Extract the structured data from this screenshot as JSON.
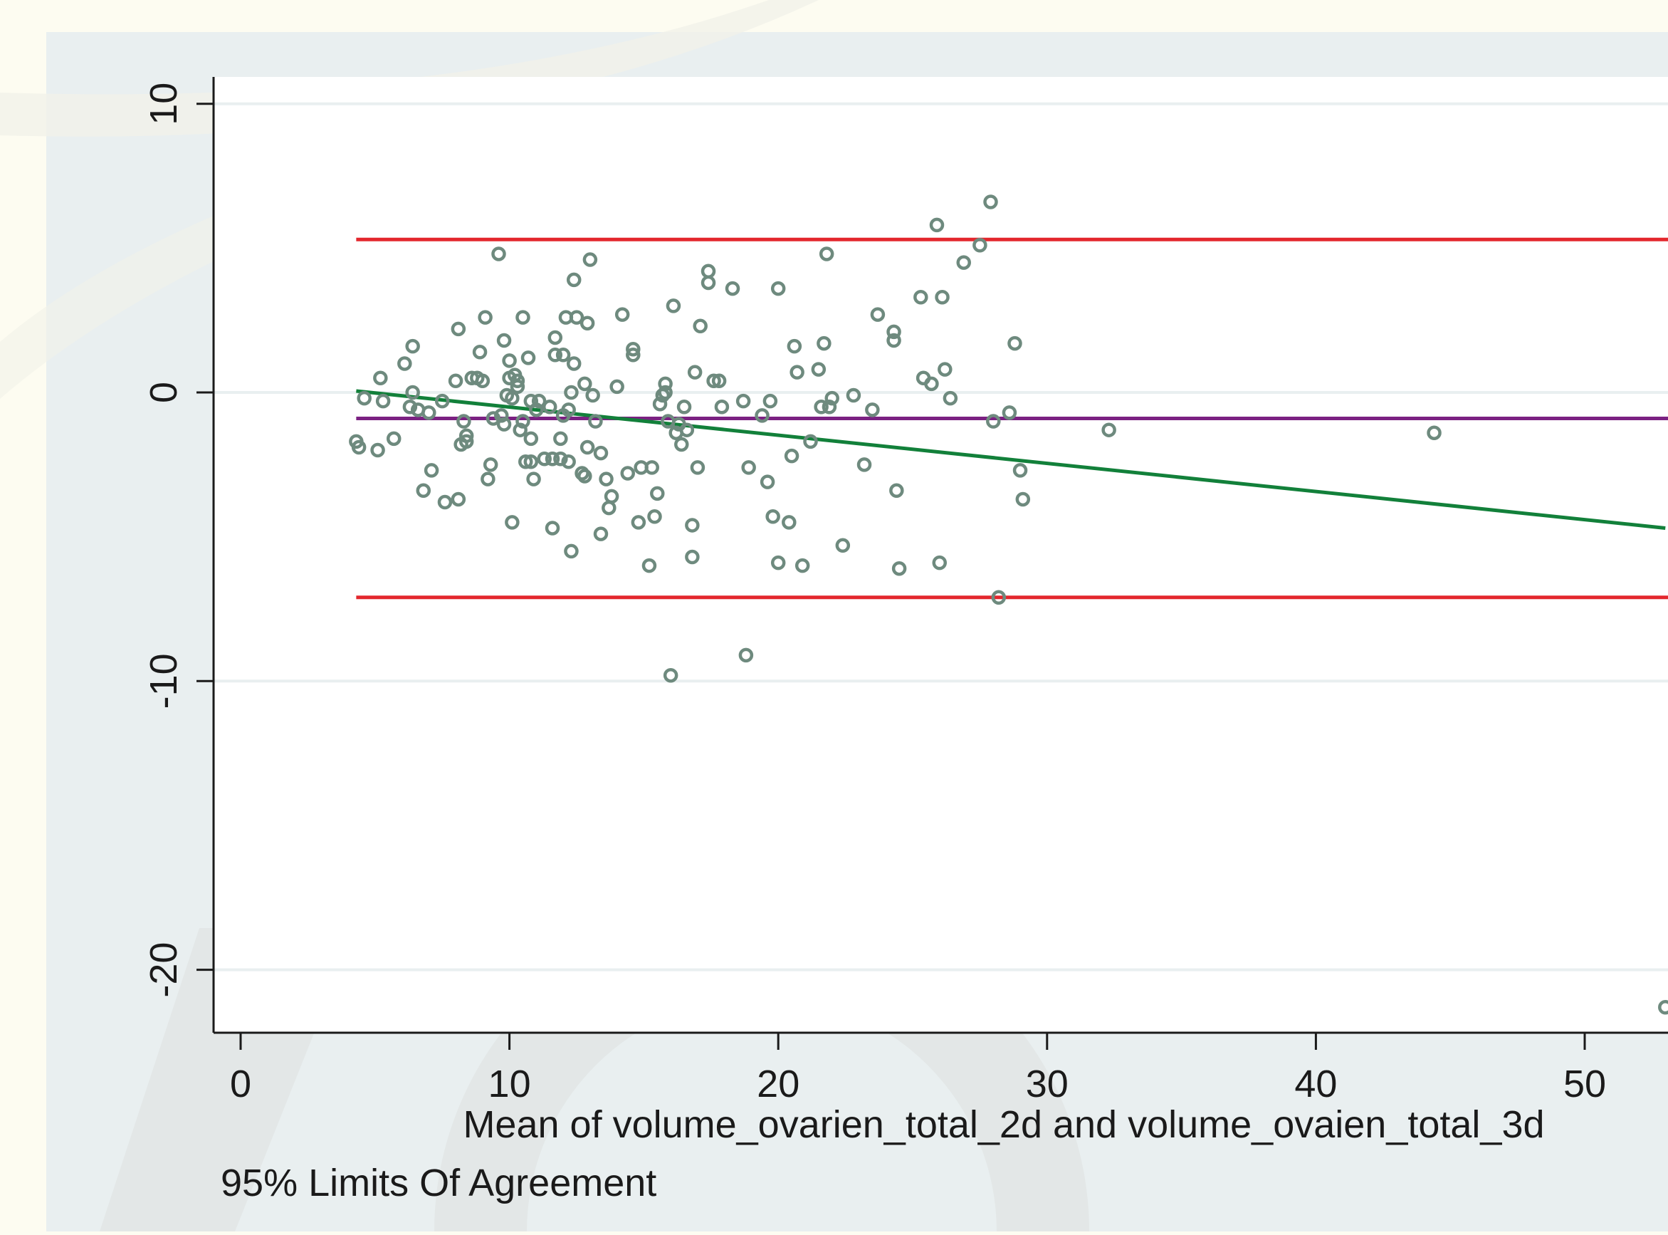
{
  "chart_data": {
    "type": "scatter",
    "title": "",
    "xlabel": "Mean of volume_ovarien_total_2d and volume_ovaien_total_3d",
    "ylabel": "",
    "note": "95% Limits Of Agreement",
    "xlim": [
      -1,
      53
    ],
    "ylim": [
      -22.2,
      10.9
    ],
    "x_ticks": [
      0,
      10,
      20,
      30,
      40,
      50
    ],
    "y_ticks": [
      10,
      0,
      -10,
      -20
    ],
    "grid": true,
    "legend": "none",
    "colors": {
      "points": "#6e8a7e",
      "limits": "#e3272d",
      "mean": "#7b2182",
      "regression": "#12803a",
      "plot_background": "#ffffff",
      "graph_background": "#e9eff0",
      "gridline": "#e9eff0"
    },
    "reference_lines": [
      {
        "name": "upper limit",
        "y": 5.3
      },
      {
        "name": "mean difference",
        "y": -0.9
      },
      {
        "name": "lower limit",
        "y": -7.1
      }
    ],
    "regression_line": {
      "x": [
        4.3,
        53
      ],
      "y": [
        0.05,
        -4.7
      ]
    },
    "points": [
      [
        4.3,
        -1.7
      ],
      [
        4.4,
        -1.9
      ],
      [
        4.6,
        -0.2
      ],
      [
        5.1,
        -2.0
      ],
      [
        5.2,
        0.5
      ],
      [
        5.3,
        -0.3
      ],
      [
        5.7,
        -1.6
      ],
      [
        6.1,
        1.0
      ],
      [
        6.3,
        -0.5
      ],
      [
        6.4,
        1.6
      ],
      [
        6.4,
        0.0
      ],
      [
        6.6,
        -0.6
      ],
      [
        6.8,
        -3.4
      ],
      [
        7.0,
        -0.7
      ],
      [
        7.1,
        -2.7
      ],
      [
        7.5,
        -0.3
      ],
      [
        7.6,
        -3.8
      ],
      [
        8.0,
        0.4
      ],
      [
        8.1,
        2.2
      ],
      [
        8.1,
        -3.7
      ],
      [
        8.2,
        -1.8
      ],
      [
        8.3,
        -1.0
      ],
      [
        8.4,
        -1.5
      ],
      [
        8.4,
        -1.7
      ],
      [
        8.6,
        0.5
      ],
      [
        8.8,
        0.5
      ],
      [
        8.9,
        1.4
      ],
      [
        9.0,
        0.4
      ],
      [
        9.1,
        2.6
      ],
      [
        9.2,
        -3.0
      ],
      [
        9.3,
        -2.5
      ],
      [
        9.4,
        -0.9
      ],
      [
        9.6,
        4.8
      ],
      [
        9.7,
        -0.8
      ],
      [
        9.8,
        1.8
      ],
      [
        9.8,
        -1.1
      ],
      [
        9.9,
        -0.1
      ],
      [
        10.0,
        1.1
      ],
      [
        10.0,
        0.5
      ],
      [
        10.1,
        -0.2
      ],
      [
        10.1,
        -4.5
      ],
      [
        10.2,
        0.6
      ],
      [
        10.3,
        0.2
      ],
      [
        10.3,
        0.4
      ],
      [
        10.4,
        -1.3
      ],
      [
        10.5,
        -1.0
      ],
      [
        10.5,
        2.6
      ],
      [
        10.6,
        -2.4
      ],
      [
        10.7,
        1.2
      ],
      [
        10.8,
        -0.3
      ],
      [
        10.8,
        -1.6
      ],
      [
        10.8,
        -2.4
      ],
      [
        10.9,
        -3.0
      ],
      [
        11.0,
        -0.6
      ],
      [
        11.1,
        -0.3
      ],
      [
        11.3,
        -2.3
      ],
      [
        11.5,
        -0.5
      ],
      [
        11.6,
        -2.3
      ],
      [
        11.6,
        -4.7
      ],
      [
        11.7,
        1.9
      ],
      [
        11.7,
        1.3
      ],
      [
        11.9,
        -1.6
      ],
      [
        11.9,
        -2.3
      ],
      [
        12.0,
        1.3
      ],
      [
        12.0,
        -0.8
      ],
      [
        12.1,
        2.6
      ],
      [
        12.2,
        -2.4
      ],
      [
        12.2,
        -0.6
      ],
      [
        12.3,
        -5.5
      ],
      [
        12.3,
        0.0
      ],
      [
        12.4,
        3.9
      ],
      [
        12.4,
        1.0
      ],
      [
        12.5,
        2.6
      ],
      [
        12.7,
        -2.8
      ],
      [
        12.8,
        0.3
      ],
      [
        12.8,
        -2.9
      ],
      [
        12.9,
        2.4
      ],
      [
        12.9,
        -1.9
      ],
      [
        13.0,
        4.6
      ],
      [
        13.1,
        -0.1
      ],
      [
        13.2,
        -1.0
      ],
      [
        13.4,
        -2.1
      ],
      [
        13.4,
        -4.9
      ],
      [
        13.6,
        -3.0
      ],
      [
        13.7,
        -4.0
      ],
      [
        13.8,
        -3.6
      ],
      [
        14.0,
        0.2
      ],
      [
        14.2,
        2.7
      ],
      [
        14.4,
        -2.8
      ],
      [
        14.6,
        1.3
      ],
      [
        14.6,
        1.5
      ],
      [
        14.8,
        -4.5
      ],
      [
        14.9,
        -2.6
      ],
      [
        15.2,
        -6.0
      ],
      [
        15.3,
        -2.6
      ],
      [
        15.4,
        -4.3
      ],
      [
        15.5,
        -3.5
      ],
      [
        15.6,
        -0.4
      ],
      [
        15.7,
        -0.1
      ],
      [
        15.8,
        0.0
      ],
      [
        15.8,
        0.3
      ],
      [
        15.9,
        -1.0
      ],
      [
        16.0,
        -9.8
      ],
      [
        16.1,
        3.0
      ],
      [
        16.2,
        -1.4
      ],
      [
        16.3,
        -1.1
      ],
      [
        16.4,
        -1.8
      ],
      [
        16.5,
        -0.5
      ],
      [
        16.6,
        -1.3
      ],
      [
        16.8,
        -4.6
      ],
      [
        16.8,
        -5.7
      ],
      [
        16.9,
        0.7
      ],
      [
        17.0,
        -2.6
      ],
      [
        17.1,
        2.3
      ],
      [
        17.4,
        4.2
      ],
      [
        17.4,
        3.8
      ],
      [
        17.6,
        0.4
      ],
      [
        17.8,
        0.4
      ],
      [
        17.9,
        -0.5
      ],
      [
        18.3,
        3.6
      ],
      [
        18.7,
        -0.3
      ],
      [
        18.8,
        -9.1
      ],
      [
        18.9,
        -2.6
      ],
      [
        19.4,
        -0.8
      ],
      [
        19.6,
        -3.1
      ],
      [
        19.7,
        -0.3
      ],
      [
        19.8,
        -4.3
      ],
      [
        20.0,
        -5.9
      ],
      [
        20.0,
        3.6
      ],
      [
        20.4,
        -4.5
      ],
      [
        20.5,
        -2.2
      ],
      [
        20.6,
        1.6
      ],
      [
        20.7,
        0.7
      ],
      [
        20.9,
        -6.0
      ],
      [
        21.2,
        -1.7
      ],
      [
        21.5,
        0.8
      ],
      [
        21.6,
        -0.5
      ],
      [
        21.7,
        1.7
      ],
      [
        21.8,
        4.8
      ],
      [
        21.9,
        -0.5
      ],
      [
        22.0,
        -0.2
      ],
      [
        22.4,
        -5.3
      ],
      [
        22.8,
        -0.1
      ],
      [
        23.2,
        -2.5
      ],
      [
        23.5,
        -0.6
      ],
      [
        23.7,
        2.7
      ],
      [
        24.3,
        1.8
      ],
      [
        24.3,
        2.1
      ],
      [
        24.4,
        -3.4
      ],
      [
        24.5,
        -6.1
      ],
      [
        25.3,
        3.3
      ],
      [
        25.4,
        0.5
      ],
      [
        25.7,
        0.3
      ],
      [
        25.9,
        5.8
      ],
      [
        26.0,
        -5.9
      ],
      [
        26.1,
        3.3
      ],
      [
        26.2,
        0.8
      ],
      [
        26.4,
        -0.2
      ],
      [
        26.9,
        4.5
      ],
      [
        27.5,
        5.1
      ],
      [
        27.9,
        6.6
      ],
      [
        28.0,
        -1.0
      ],
      [
        28.2,
        -7.1
      ],
      [
        28.6,
        -0.7
      ],
      [
        28.8,
        1.7
      ],
      [
        29.0,
        -2.7
      ],
      [
        29.1,
        -3.7
      ],
      [
        32.3,
        -1.3
      ],
      [
        44.4,
        -1.4
      ],
      [
        53.0,
        -21.3
      ]
    ]
  }
}
